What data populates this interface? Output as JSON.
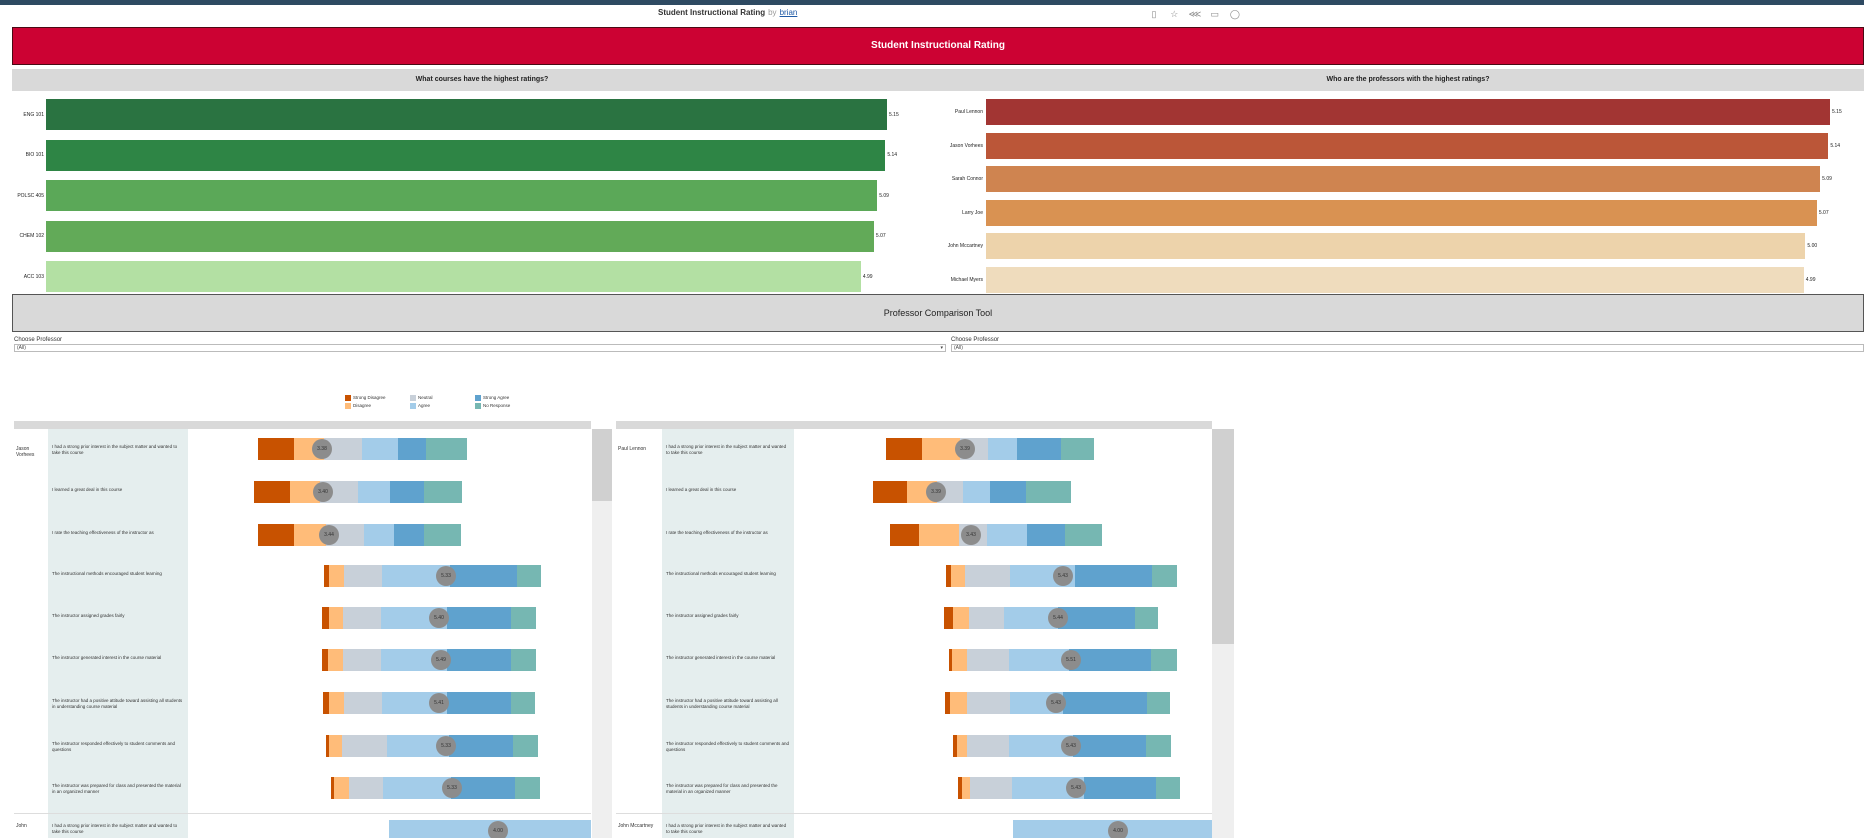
{
  "header": {
    "title": "Student Instructional Rating",
    "by": "by",
    "author": "brian",
    "toolbar_icons": [
      "copy-icon",
      "star-icon",
      "share-icon",
      "download-icon",
      "account-icon"
    ]
  },
  "banner": {
    "title": "Student Instructional Rating"
  },
  "courses_chart": {
    "subtitle": "What courses have the highest ratings?",
    "chart_data": {
      "type": "bar",
      "orientation": "horizontal",
      "categories": [
        "ENG 101",
        "BIO 101",
        "POLSC 405",
        "CHEM 102",
        "ACC 103"
      ],
      "values": [
        5.15,
        5.14,
        5.09,
        5.07,
        4.99
      ],
      "value_labels": [
        "5.15",
        "5.14",
        "5.09",
        "5.07",
        "4.99"
      ],
      "colors": [
        "#2a7341",
        "#2e8545",
        "#5ba858",
        "#62aa58",
        "#b3e0a3"
      ]
    }
  },
  "professors_chart": {
    "subtitle": "Who are the professors with the highest ratings?",
    "chart_data": {
      "type": "bar",
      "orientation": "horizontal",
      "categories": [
        "Paul Lennon",
        "Jason Vorhees",
        "Sarah Connor",
        "Larry Joe",
        "John Mccartney",
        "Michael Myers"
      ],
      "values": [
        5.15,
        5.14,
        5.09,
        5.07,
        5.0,
        4.99
      ],
      "value_labels": [
        "5.15",
        "5.14",
        "5.09",
        "5.07",
        "5.00",
        "4.99"
      ],
      "colors": [
        "#a23533",
        "#bb5638",
        "#cf8450",
        "#d99252",
        "#edd3ab",
        "#efdcbd"
      ]
    }
  },
  "comparison": {
    "title": "Professor Comparison Tool",
    "left_label": "Choose Professor",
    "left_value": "(All)",
    "right_label": "Choose Professor",
    "right_value": "(All)"
  },
  "legend": [
    {
      "label": "Strong Disagree",
      "color": "#c85200"
    },
    {
      "label": "Disagree",
      "color": "#ffbc79"
    },
    {
      "label": "Neutral",
      "color": "#c8d0d9"
    },
    {
      "label": "Agree",
      "color": "#a3cce9"
    },
    {
      "label": "Strong Agree",
      "color": "#5fa2ce"
    },
    {
      "label": "No Response",
      "color": "#76b7b2"
    }
  ],
  "questions": [
    "I had a strong prior interest in the subject matter and wanted to take this course",
    "I learned a great deal in this course",
    "I rate the teaching effectiveness of the instructor as",
    "The instructional methods encouraged student learning",
    "The instructor assigned grades fairly",
    "The instructor generated interest in the course material",
    "The instructor had a positive attitude toward assisting all students in understanding course material",
    "The instructor responded effectively to student comments and questions",
    "The instructor was prepared for class and presented the material in an organized manner"
  ],
  "left_panel": {
    "professor": "Jason Vorhees",
    "next_professor": "John",
    "averages": [
      "3.38",
      "3.40",
      "3.44",
      "5.33",
      "5.40",
      "5.49",
      "5.41",
      "5.33",
      "5.33"
    ],
    "next_average": "4.00"
  },
  "right_panel": {
    "professor": "Paul Lennon",
    "next_professor": "John Mccartney",
    "averages": [
      "3.39",
      "3.39",
      "3.43",
      "5.43",
      "5.44",
      "5.51",
      "5.43",
      "5.43",
      "5.43"
    ],
    "next_average": "4.00"
  }
}
